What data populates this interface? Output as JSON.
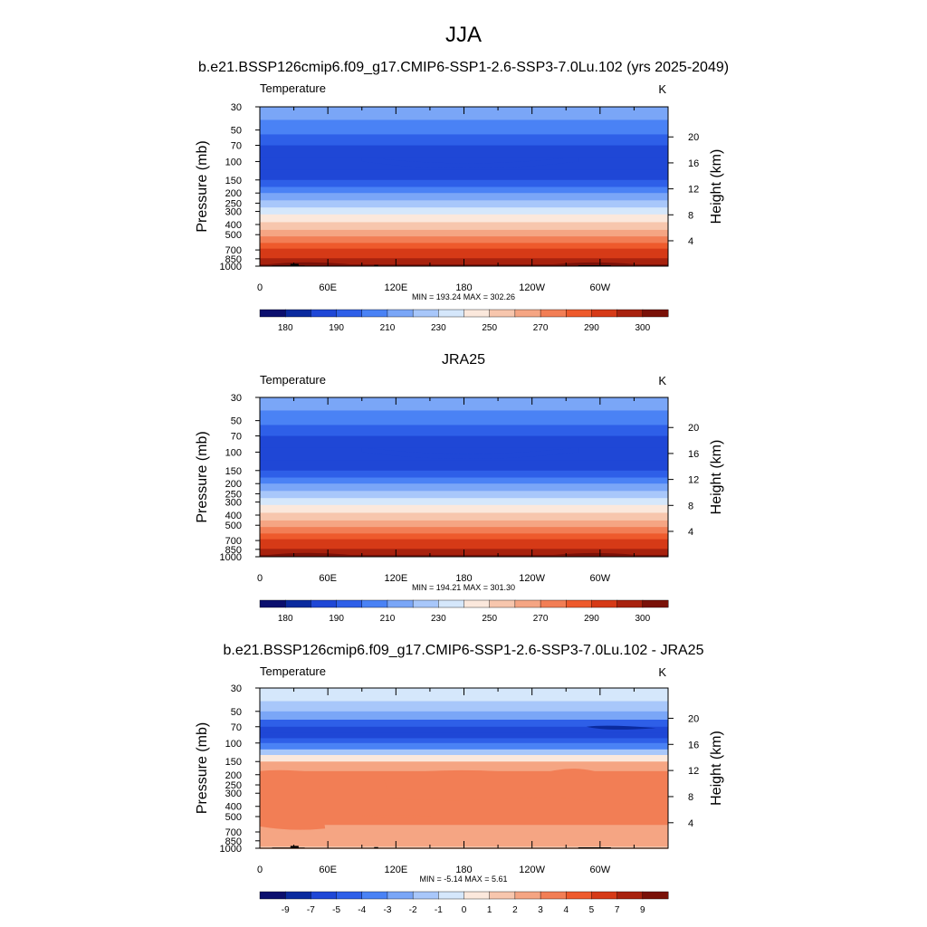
{
  "figure": {
    "title": "JJA"
  },
  "chart_data": [
    {
      "type": "heatmap",
      "title": "b.e21.BSSP126cmip6.f09_g17.CMIP6-SSP1-2.6-SSP3-7.0Lu.102 (yrs 2025-2049)",
      "variable_label": "Temperature",
      "units": "K",
      "ylabel": "Pressure (mb)",
      "ylabel_right": "Height (km)",
      "x_ticks": [
        "0",
        "60E",
        "120E",
        "180",
        "120W",
        "60W"
      ],
      "p_ticks": [
        "30",
        "50",
        "70",
        "100",
        "150",
        "200",
        "250",
        "300",
        "400",
        "500",
        "700",
        "850",
        "1000"
      ],
      "h_ticks": [
        "20",
        "16",
        "12",
        "8",
        "4"
      ],
      "stats": "MIN = 193.24  MAX = 302.26",
      "colorbar_labels": [
        "180",
        "190",
        "210",
        "230",
        "250",
        "270",
        "290",
        "300"
      ],
      "colors": [
        "#0b0f6e",
        "#0a2a9e",
        "#1f47d6",
        "#2e5fe8",
        "#4a82f5",
        "#7aa6f7",
        "#a8c7fa",
        "#d5e7fb",
        "#fbe8dc",
        "#f7c6ad",
        "#f5a583",
        "#f27e55",
        "#ee5a2c",
        "#d63a17",
        "#a8220e",
        "#7a1108"
      ],
      "ylim": [
        1000,
        30
      ],
      "profile_levels": [
        [
          30,
          5
        ],
        [
          40,
          4
        ],
        [
          55,
          3
        ],
        [
          70,
          2
        ],
        [
          90,
          2
        ],
        [
          120,
          2
        ],
        [
          150,
          3
        ],
        [
          175,
          4
        ],
        [
          200,
          5
        ],
        [
          235,
          6
        ],
        [
          275,
          7
        ],
        [
          320,
          8
        ],
        [
          380,
          9
        ],
        [
          450,
          10
        ],
        [
          520,
          11
        ],
        [
          600,
          12
        ],
        [
          680,
          13
        ],
        [
          760,
          13
        ],
        [
          840,
          14
        ],
        [
          900,
          14
        ],
        [
          960,
          15
        ]
      ],
      "topography": true
    },
    {
      "type": "heatmap",
      "title": "JRA25",
      "variable_label": "Temperature",
      "units": "K",
      "ylabel": "Pressure (mb)",
      "ylabel_right": "Height (km)",
      "x_ticks": [
        "0",
        "60E",
        "120E",
        "180",
        "120W",
        "60W"
      ],
      "p_ticks": [
        "30",
        "50",
        "70",
        "100",
        "150",
        "200",
        "250",
        "300",
        "400",
        "500",
        "700",
        "850",
        "1000"
      ],
      "h_ticks": [
        "20",
        "16",
        "12",
        "8",
        "4"
      ],
      "stats": "MIN = 194.21  MAX = 301.30",
      "colorbar_labels": [
        "180",
        "190",
        "210",
        "230",
        "250",
        "270",
        "290",
        "300"
      ],
      "colors": [
        "#0b0f6e",
        "#0a2a9e",
        "#1f47d6",
        "#2e5fe8",
        "#4a82f5",
        "#7aa6f7",
        "#a8c7fa",
        "#d5e7fb",
        "#fbe8dc",
        "#f7c6ad",
        "#f5a583",
        "#f27e55",
        "#ee5a2c",
        "#d63a17",
        "#a8220e",
        "#7a1108"
      ],
      "ylim": [
        1000,
        30
      ],
      "profile_levels": [
        [
          30,
          5
        ],
        [
          40,
          4
        ],
        [
          55,
          3
        ],
        [
          70,
          2
        ],
        [
          90,
          2
        ],
        [
          120,
          2
        ],
        [
          150,
          3
        ],
        [
          175,
          4
        ],
        [
          200,
          5
        ],
        [
          235,
          6
        ],
        [
          275,
          7
        ],
        [
          320,
          8
        ],
        [
          380,
          9
        ],
        [
          450,
          10
        ],
        [
          520,
          11
        ],
        [
          600,
          12
        ],
        [
          680,
          13
        ],
        [
          760,
          13
        ],
        [
          840,
          14
        ],
        [
          900,
          14
        ],
        [
          960,
          15
        ]
      ],
      "topography": false
    },
    {
      "type": "heatmap",
      "title": "b.e21.BSSP126cmip6.f09_g17.CMIP6-SSP1-2.6-SSP3-7.0Lu.102 - JRA25",
      "variable_label": "Temperature",
      "units": "K",
      "ylabel": "Pressure (mb)",
      "ylabel_right": "Height (km)",
      "x_ticks": [
        "0",
        "60E",
        "120E",
        "180",
        "120W",
        "60W"
      ],
      "p_ticks": [
        "30",
        "50",
        "70",
        "100",
        "150",
        "200",
        "250",
        "300",
        "400",
        "500",
        "700",
        "850",
        "1000"
      ],
      "h_ticks": [
        "20",
        "16",
        "12",
        "8",
        "4"
      ],
      "stats": "MIN =  -5.14  MAX =   5.61",
      "colorbar_labels": [
        "-9",
        "-7",
        "-5",
        "-4",
        "-3",
        "-2",
        "-1",
        "0",
        "1",
        "2",
        "3",
        "4",
        "5",
        "7",
        "9"
      ],
      "colors": [
        "#0b0f6e",
        "#0a2a9e",
        "#1f47d6",
        "#2e5fe8",
        "#4a82f5",
        "#7aa6f7",
        "#a8c7fa",
        "#d5e7fb",
        "#fbe8dc",
        "#f7c6ad",
        "#f5a583",
        "#f27e55",
        "#ee5a2c",
        "#d63a17",
        "#a8220e",
        "#7a1108"
      ],
      "ylim": [
        1000,
        30
      ],
      "profile_levels": [
        [
          30,
          7
        ],
        [
          40,
          6
        ],
        [
          50,
          5
        ],
        [
          60,
          3
        ],
        [
          70,
          2
        ],
        [
          80,
          2
        ],
        [
          90,
          3
        ],
        [
          100,
          4
        ],
        [
          115,
          6
        ],
        [
          130,
          8
        ],
        [
          150,
          10
        ],
        [
          185,
          11
        ],
        [
          600,
          10
        ],
        [
          860,
          10
        ],
        [
          1000,
          9
        ]
      ],
      "topography": true
    }
  ]
}
